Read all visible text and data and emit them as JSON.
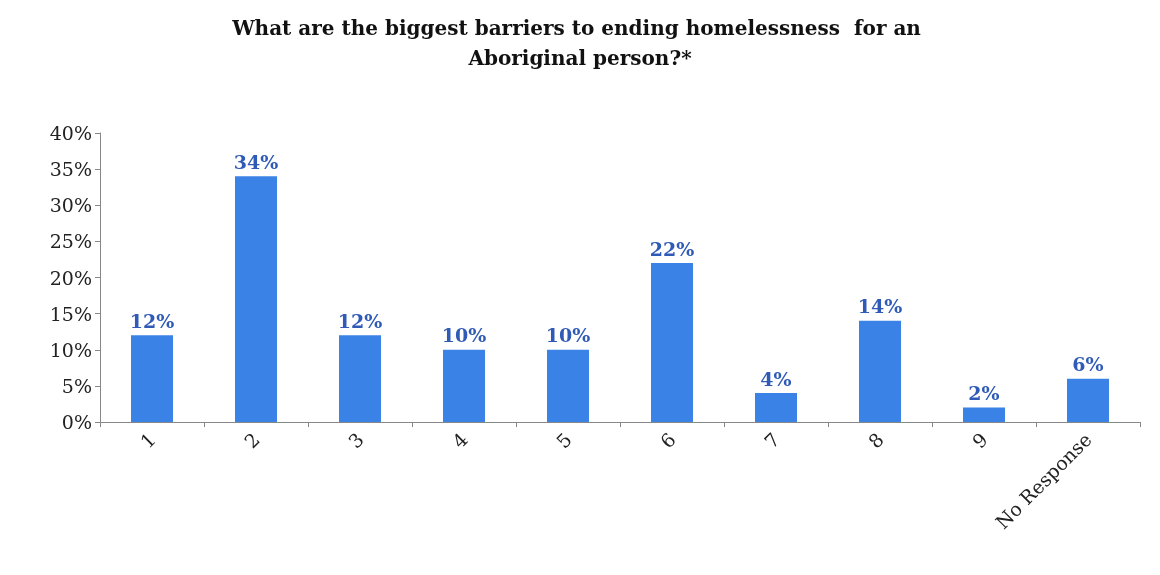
{
  "chart_data": {
    "type": "bar",
    "title": "What are the biggest barriers to ending homelessness  for an Aboriginal person?*",
    "categories": [
      "1",
      "2",
      "3",
      "4",
      "5",
      "6",
      "7",
      "8",
      "9",
      "No Response"
    ],
    "values": [
      12,
      34,
      12,
      10,
      10,
      22,
      4,
      14,
      2,
      6
    ],
    "value_labels": [
      "12%",
      "34%",
      "12%",
      "10%",
      "10%",
      "22%",
      "4%",
      "14%",
      "2%",
      "6%"
    ],
    "color": "#3b82e6",
    "ylim": [
      0,
      40
    ],
    "yticks": [
      {
        "value": 0,
        "label": "0%"
      },
      {
        "value": 5,
        "label": "5%"
      },
      {
        "value": 10,
        "label": "10%"
      },
      {
        "value": 15,
        "label": "15%"
      },
      {
        "value": 20,
        "label": "20%"
      },
      {
        "value": 25,
        "label": "25%"
      },
      {
        "value": 30,
        "label": "30%"
      },
      {
        "value": 35,
        "label": "35%"
      },
      {
        "value": 40,
        "label": "40%"
      }
    ],
    "grid": false
  }
}
